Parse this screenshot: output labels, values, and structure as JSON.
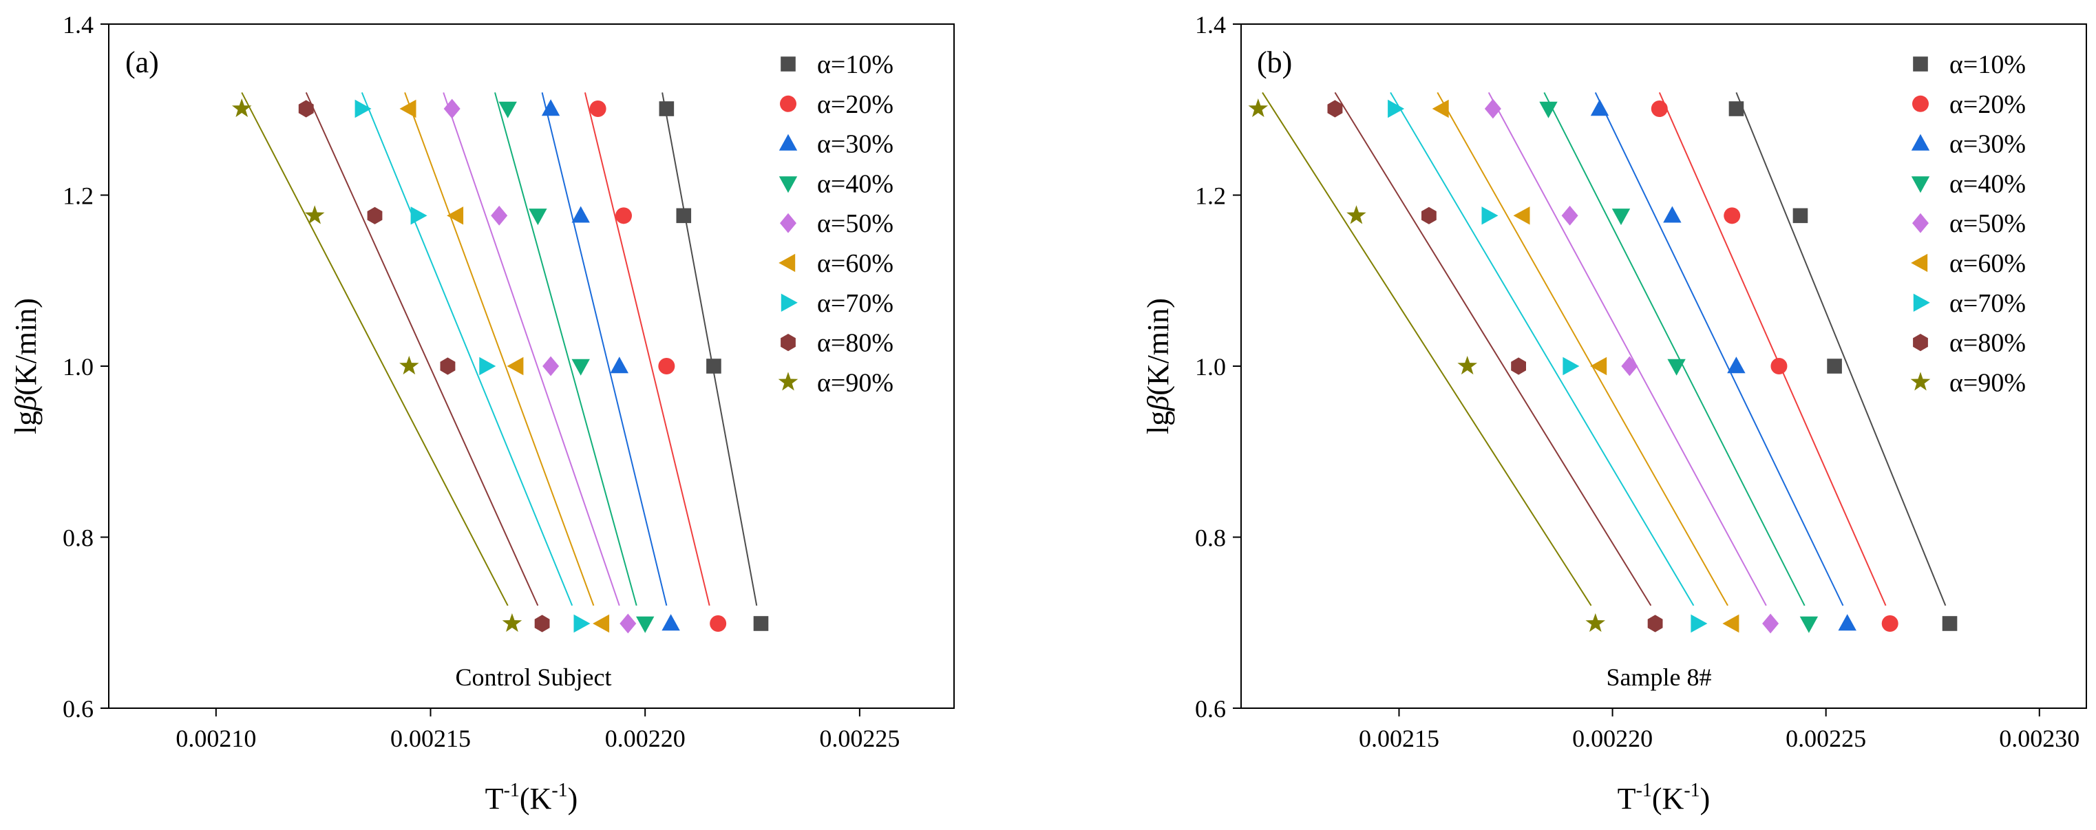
{
  "chart_data": [
    {
      "type": "scatter",
      "panel_label": "(a)",
      "annotation": "Control Subject",
      "xlabel_main": "T",
      "xlabel_sup1": "-1",
      "xlabel_mid": "(K",
      "xlabel_sup2": "-1",
      "xlabel_end": ")",
      "ylabel_pre": "lg",
      "ylabel_beta": "β",
      "ylabel_post": "(K/min)",
      "xlim": [
        0.002075,
        0.002272
      ],
      "ylim": [
        0.6,
        1.4
      ],
      "xticks": [
        0.0021,
        0.00215,
        0.0022,
        0.00225
      ],
      "xtick_labels": [
        "0.00210",
        "0.00215",
        "0.00220",
        "0.00225"
      ],
      "yticks": [
        0.6,
        0.8,
        1.0,
        1.2,
        1.4
      ],
      "ytick_labels": [
        "0.6",
        "0.8",
        "1.0",
        "1.2",
        "1.4"
      ],
      "legend_position": "top-right",
      "y": [
        1.301,
        1.176,
        1.0,
        0.699
      ],
      "series": [
        {
          "name": "α=10%",
          "marker": "square",
          "color": "#4d4d4d",
          "x": [
            0.002205,
            0.002209,
            0.002216,
            0.002227
          ],
          "fit_x": [
            0.002204,
            0.002226
          ],
          "fit_y": [
            1.32,
            0.72
          ]
        },
        {
          "name": "α=20%",
          "marker": "circle",
          "color": "#f03e3e",
          "x": [
            0.002189,
            0.002195,
            0.002205,
            0.002217
          ],
          "fit_x": [
            0.002186,
            0.002215
          ],
          "fit_y": [
            1.32,
            0.72
          ]
        },
        {
          "name": "α=30%",
          "marker": "triangle-up",
          "color": "#1a6bdb",
          "x": [
            0.002178,
            0.002185,
            0.002194,
            0.002206
          ],
          "fit_x": [
            0.002176,
            0.002205
          ],
          "fit_y": [
            1.32,
            0.72
          ]
        },
        {
          "name": "α=40%",
          "marker": "triangle-down",
          "color": "#13b07a",
          "x": [
            0.002168,
            0.002175,
            0.002185,
            0.0022
          ],
          "fit_x": [
            0.002165,
            0.002198
          ],
          "fit_y": [
            1.32,
            0.72
          ]
        },
        {
          "name": "α=50%",
          "marker": "diamond",
          "color": "#c774e0",
          "x": [
            0.002155,
            0.002166,
            0.002178,
            0.002196
          ],
          "fit_x": [
            0.002153,
            0.002194
          ],
          "fit_y": [
            1.32,
            0.72
          ]
        },
        {
          "name": "α=60%",
          "marker": "triangle-left",
          "color": "#d99a0b",
          "x": [
            0.002145,
            0.002156,
            0.00217,
            0.00219
          ],
          "fit_x": [
            0.002144,
            0.002188
          ],
          "fit_y": [
            1.32,
            0.72
          ]
        },
        {
          "name": "α=70%",
          "marker": "triangle-right",
          "color": "#16c9d3",
          "x": [
            0.002134,
            0.002147,
            0.002163,
            0.002185
          ],
          "fit_x": [
            0.002134,
            0.002183
          ],
          "fit_y": [
            1.32,
            0.72
          ]
        },
        {
          "name": "α=80%",
          "marker": "hexagon",
          "color": "#8b3a3a",
          "x": [
            0.002121,
            0.002137,
            0.002154,
            0.002176
          ],
          "fit_x": [
            0.002121,
            0.002175
          ],
          "fit_y": [
            1.32,
            0.72
          ]
        },
        {
          "name": "α=90%",
          "marker": "star",
          "color": "#808000",
          "x": [
            0.002106,
            0.002123,
            0.002145,
            0.002169
          ],
          "fit_x": [
            0.002106,
            0.002168
          ],
          "fit_y": [
            1.32,
            0.72
          ]
        }
      ]
    },
    {
      "type": "scatter",
      "panel_label": "(b)",
      "annotation": "Sample 8#",
      "xlabel_main": "T",
      "xlabel_sup1": "-1",
      "xlabel_mid": "(K",
      "xlabel_sup2": "-1",
      "xlabel_end": ")",
      "ylabel_pre": "lg",
      "ylabel_beta": "β",
      "ylabel_post": "(K/min)",
      "xlim": [
        0.002113,
        0.002311
      ],
      "ylim": [
        0.6,
        1.4
      ],
      "xticks": [
        0.00215,
        0.0022,
        0.00225,
        0.0023
      ],
      "xtick_labels": [
        "0.00215",
        "0.00220",
        "0.00225",
        "0.00230"
      ],
      "yticks": [
        0.6,
        0.8,
        1.0,
        1.2,
        1.4
      ],
      "ytick_labels": [
        "0.6",
        "0.8",
        "1.0",
        "1.2",
        "1.4"
      ],
      "legend_position": "top-right",
      "y": [
        1.301,
        1.176,
        1.0,
        0.699
      ],
      "series": [
        {
          "name": "α=10%",
          "marker": "square",
          "color": "#4d4d4d",
          "x": [
            0.002229,
            0.002244,
            0.002252,
            0.002279
          ],
          "fit_x": [
            0.002229,
            0.002278
          ],
          "fit_y": [
            1.32,
            0.72
          ]
        },
        {
          "name": "α=20%",
          "marker": "circle",
          "color": "#f03e3e",
          "x": [
            0.002211,
            0.002228,
            0.002239,
            0.002265
          ],
          "fit_x": [
            0.002211,
            0.002264
          ],
          "fit_y": [
            1.32,
            0.72
          ]
        },
        {
          "name": "α=30%",
          "marker": "triangle-up",
          "color": "#1a6bdb",
          "x": [
            0.002197,
            0.002214,
            0.002229,
            0.002255
          ],
          "fit_x": [
            0.002196,
            0.002254
          ],
          "fit_y": [
            1.32,
            0.72
          ]
        },
        {
          "name": "α=40%",
          "marker": "triangle-down",
          "color": "#13b07a",
          "x": [
            0.002185,
            0.002202,
            0.002215,
            0.002246
          ],
          "fit_x": [
            0.002184,
            0.002245
          ],
          "fit_y": [
            1.32,
            0.72
          ]
        },
        {
          "name": "α=50%",
          "marker": "diamond",
          "color": "#c774e0",
          "x": [
            0.002172,
            0.00219,
            0.002204,
            0.002237
          ],
          "fit_x": [
            0.002171,
            0.002236
          ],
          "fit_y": [
            1.32,
            0.72
          ]
        },
        {
          "name": "α=60%",
          "marker": "triangle-left",
          "color": "#d99a0b",
          "x": [
            0.00216,
            0.002179,
            0.002197,
            0.002228
          ],
          "fit_x": [
            0.002159,
            0.002227
          ],
          "fit_y": [
            1.32,
            0.72
          ]
        },
        {
          "name": "α=70%",
          "marker": "triangle-right",
          "color": "#16c9d3",
          "x": [
            0.002149,
            0.002171,
            0.00219,
            0.00222
          ],
          "fit_x": [
            0.002148,
            0.002219
          ],
          "fit_y": [
            1.32,
            0.72
          ]
        },
        {
          "name": "α=80%",
          "marker": "hexagon",
          "color": "#8b3a3a",
          "x": [
            0.002135,
            0.002157,
            0.002178,
            0.00221
          ],
          "fit_x": [
            0.002135,
            0.002209
          ],
          "fit_y": [
            1.32,
            0.72
          ]
        },
        {
          "name": "α=90%",
          "marker": "star",
          "color": "#808000",
          "x": [
            0.002117,
            0.00214,
            0.002166,
            0.002196
          ],
          "fit_x": [
            0.002118,
            0.002195
          ],
          "fit_y": [
            1.32,
            0.72
          ]
        }
      ]
    }
  ]
}
